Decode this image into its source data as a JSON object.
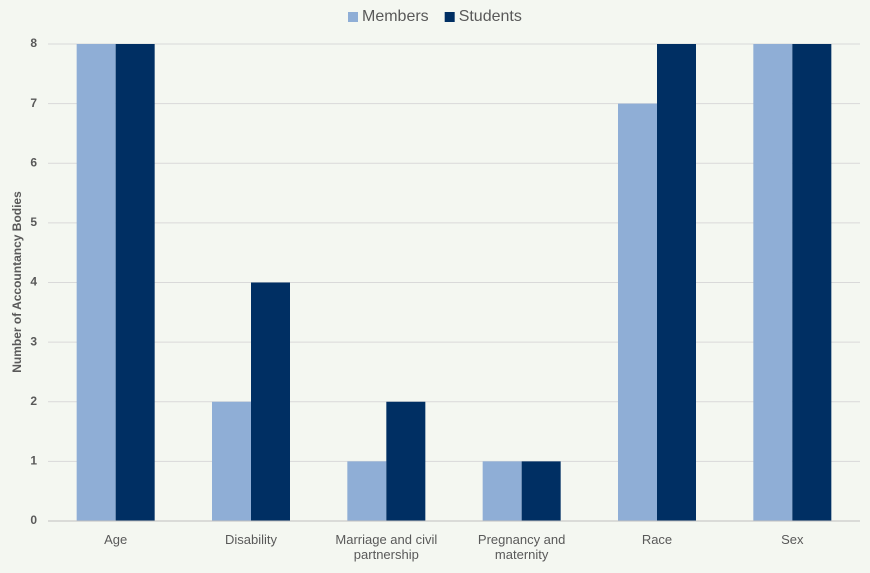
{
  "chart_data": {
    "type": "bar",
    "categories": [
      "Age",
      "Disability",
      "Marriage and civil partnership",
      "Pregnancy and maternity",
      "Race",
      "Sex"
    ],
    "series": [
      {
        "name": "Members",
        "color": "#8faed6",
        "values": [
          8,
          2,
          1,
          1,
          7,
          8
        ]
      },
      {
        "name": "Students",
        "color": "#002f63",
        "values": [
          8,
          4,
          2,
          1,
          8,
          8
        ]
      }
    ],
    "y_label": "Number of Accountancy Bodies",
    "ylim": [
      0,
      8
    ],
    "yticks": [
      0,
      1,
      2,
      3,
      4,
      5,
      6,
      7,
      8
    ],
    "grid": true,
    "legend": "top"
  }
}
